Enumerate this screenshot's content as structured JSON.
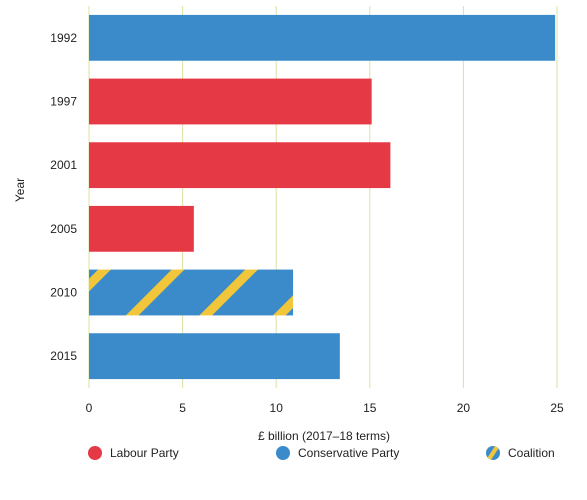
{
  "chart_data": {
    "type": "bar",
    "orientation": "horizontal",
    "categories": [
      "1992",
      "1997",
      "2001",
      "2005",
      "2010",
      "2015"
    ],
    "values": [
      24.9,
      15.1,
      16.1,
      5.6,
      10.9,
      13.4
    ],
    "bar_party": [
      "Conservative Party",
      "Labour Party",
      "Labour Party",
      "Labour Party",
      "Coalition",
      "Conservative Party"
    ],
    "xlabel": "£ billion (2017–18 terms)",
    "ylabel": "Year",
    "xlim": [
      0,
      25
    ],
    "xticks": [
      "0",
      "5",
      "10",
      "15",
      "20",
      "25"
    ],
    "grid": "vertical",
    "legend_position": "bottom",
    "legend": [
      {
        "label": "Labour Party",
        "color": "#e63946"
      },
      {
        "label": "Conservative Party",
        "color": "#3b8bcb"
      },
      {
        "label": "Coalition",
        "color": "#3b8bcb",
        "stripe_color": "#f2c63a"
      }
    ],
    "colors": {
      "Labour Party": "#e63946",
      "Conservative Party": "#3b8bcb",
      "Coalition": "#3b8bcb",
      "stripe": "#f2c63a",
      "grid": "#d8e4a0"
    }
  }
}
